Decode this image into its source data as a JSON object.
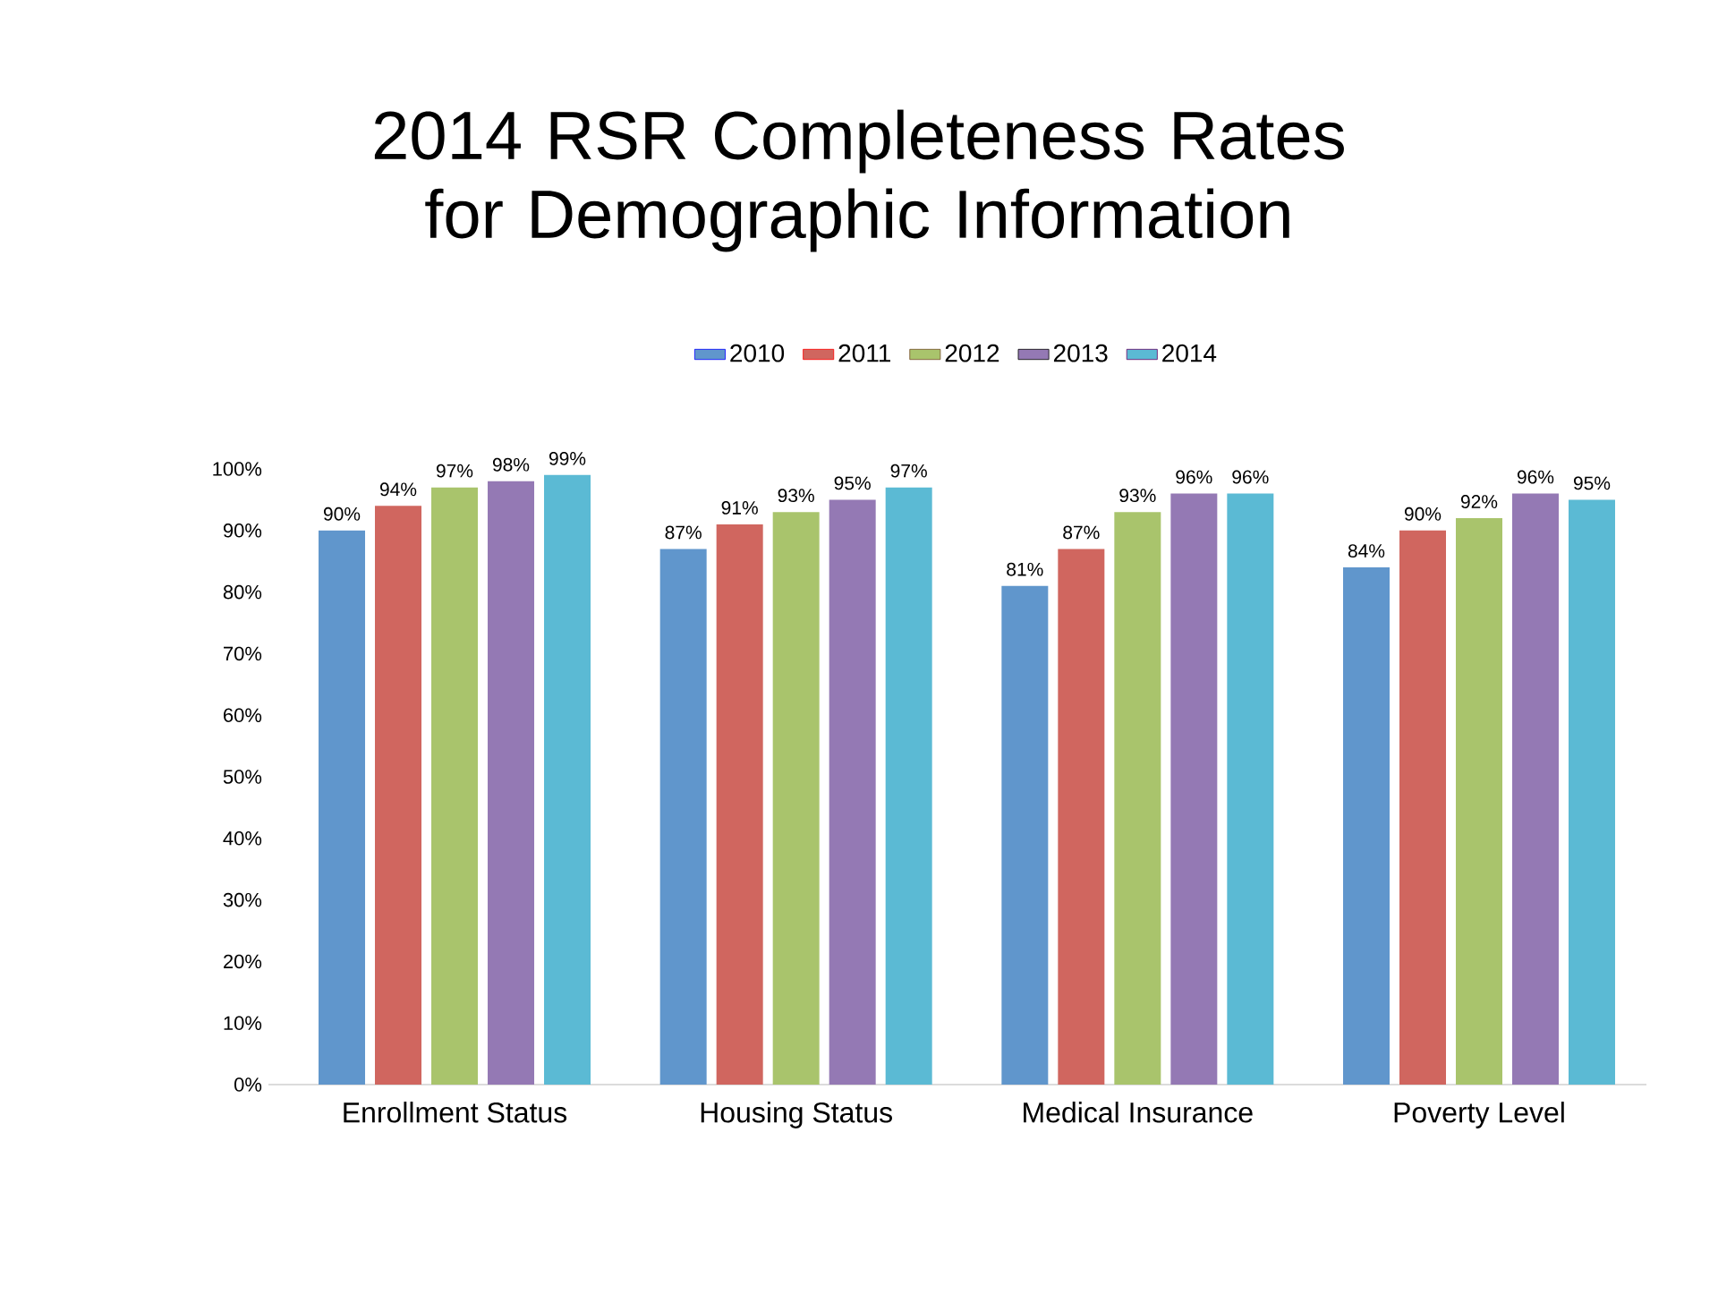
{
  "chart_data": {
    "type": "bar",
    "title": "2014 RSR Completeness Rates for Demographic Information",
    "categories": [
      "Enrollment Status",
      "Housing Status",
      "Medical Insurance",
      "Poverty Level"
    ],
    "series": [
      {
        "name": "2010",
        "color": "#6096cc",
        "values": [
          90,
          87,
          81,
          84
        ],
        "value_labels": [
          "90%",
          "87%",
          "81%",
          "84%"
        ]
      },
      {
        "name": "2011",
        "color": "#d0665f",
        "values": [
          94,
          91,
          87,
          90
        ],
        "value_labels": [
          "94%",
          "91%",
          "87%",
          "90%"
        ]
      },
      {
        "name": "2012",
        "color": "#a9c46c",
        "values": [
          97,
          93,
          93,
          92
        ],
        "value_labels": [
          "97%",
          "93%",
          "93%",
          "92%"
        ]
      },
      {
        "name": "2013",
        "color": "#9479b4",
        "values": [
          98,
          95,
          96,
          96
        ],
        "value_labels": [
          "98%",
          "95%",
          "96%",
          "96%"
        ]
      },
      {
        "name": "2014",
        "color": "#5bbad4",
        "values": [
          99,
          97,
          96,
          95
        ],
        "value_labels": [
          "99%",
          "97%",
          "96%",
          "95%"
        ]
      }
    ],
    "ylim": [
      0,
      100
    ],
    "yticks": [
      {
        "value": 0,
        "label": "0%"
      },
      {
        "value": 10,
        "label": "10%"
      },
      {
        "value": 20,
        "label": "20%"
      },
      {
        "value": 30,
        "label": "30%"
      },
      {
        "value": 40,
        "label": "40%"
      },
      {
        "value": 50,
        "label": "50%"
      },
      {
        "value": 60,
        "label": "60%"
      },
      {
        "value": 70,
        "label": "70%"
      },
      {
        "value": 80,
        "label": "80%"
      },
      {
        "value": 90,
        "label": "90%"
      },
      {
        "value": 100,
        "label": "100%"
      }
    ],
    "legend": "top"
  }
}
